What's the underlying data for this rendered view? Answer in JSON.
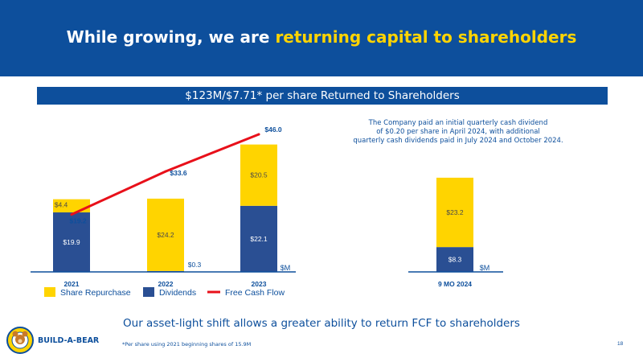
{
  "slide": {
    "title_pre": "While growing, we are ",
    "title_highlight": "returning capital to shareholders",
    "banner": "$123M/$7.71* per share Returned to Shareholders",
    "note_lines": [
      "The Company paid an initial quarterly cash dividend",
      "of $0.20 per share in April 2024, with additional",
      "quarterly cash dividends paid in July 2024 and October 2024."
    ],
    "tagline": "Our asset-light shift allows a greater ability to return FCF to shareholders",
    "footnote": "*Per share using 2021 beginning shares of 15.9M",
    "page_number": "18",
    "logo_text": "BUILD-A-BEAR"
  },
  "colors": {
    "navy": "#0d4f9c",
    "dark_blue": "#2a4f93",
    "gold": "#ffd400",
    "red": "#e8101a"
  },
  "chart_data": [
    {
      "type": "bar",
      "stacked": true,
      "categories": [
        "2021",
        "2022",
        "2023"
      ],
      "series": [
        {
          "name": "Dividends",
          "values": [
            19.9,
            0.3,
            22.1
          ],
          "labels": [
            "$19.9",
            "$0.3",
            "$22.1"
          ],
          "color": "#2a4f93"
        },
        {
          "name": "Share Repurchase",
          "values": [
            4.4,
            24.2,
            20.5
          ],
          "labels": [
            "$4.4",
            "$24.2",
            "$20.5"
          ],
          "color": "#ffd400"
        }
      ],
      "line": {
        "name": "Free Cash Flow",
        "values": [
          19.2,
          33.6,
          46.0
        ],
        "labels": [
          "$19.2",
          "$33.6",
          "$46.0"
        ],
        "color": "#e8101a"
      },
      "unit_label": "$M",
      "ylim": [
        0,
        48
      ]
    },
    {
      "type": "bar",
      "stacked": true,
      "categories": [
        "9 MO 2024"
      ],
      "series": [
        {
          "name": "Dividends",
          "values": [
            8.3
          ],
          "labels": [
            "$8.3"
          ],
          "color": "#2a4f93"
        },
        {
          "name": "Share Repurchase",
          "values": [
            23.2
          ],
          "labels": [
            "$23.2"
          ],
          "color": "#ffd400"
        }
      ],
      "unit_label": "$M",
      "ylim": [
        0,
        48
      ]
    }
  ],
  "legend": [
    {
      "label": "Share Repurchase",
      "kind": "box",
      "color": "#ffd400"
    },
    {
      "label": "Dividends",
      "kind": "box",
      "color": "#2a4f93"
    },
    {
      "label": "Free Cash Flow",
      "kind": "line",
      "color": "#e8101a"
    }
  ]
}
